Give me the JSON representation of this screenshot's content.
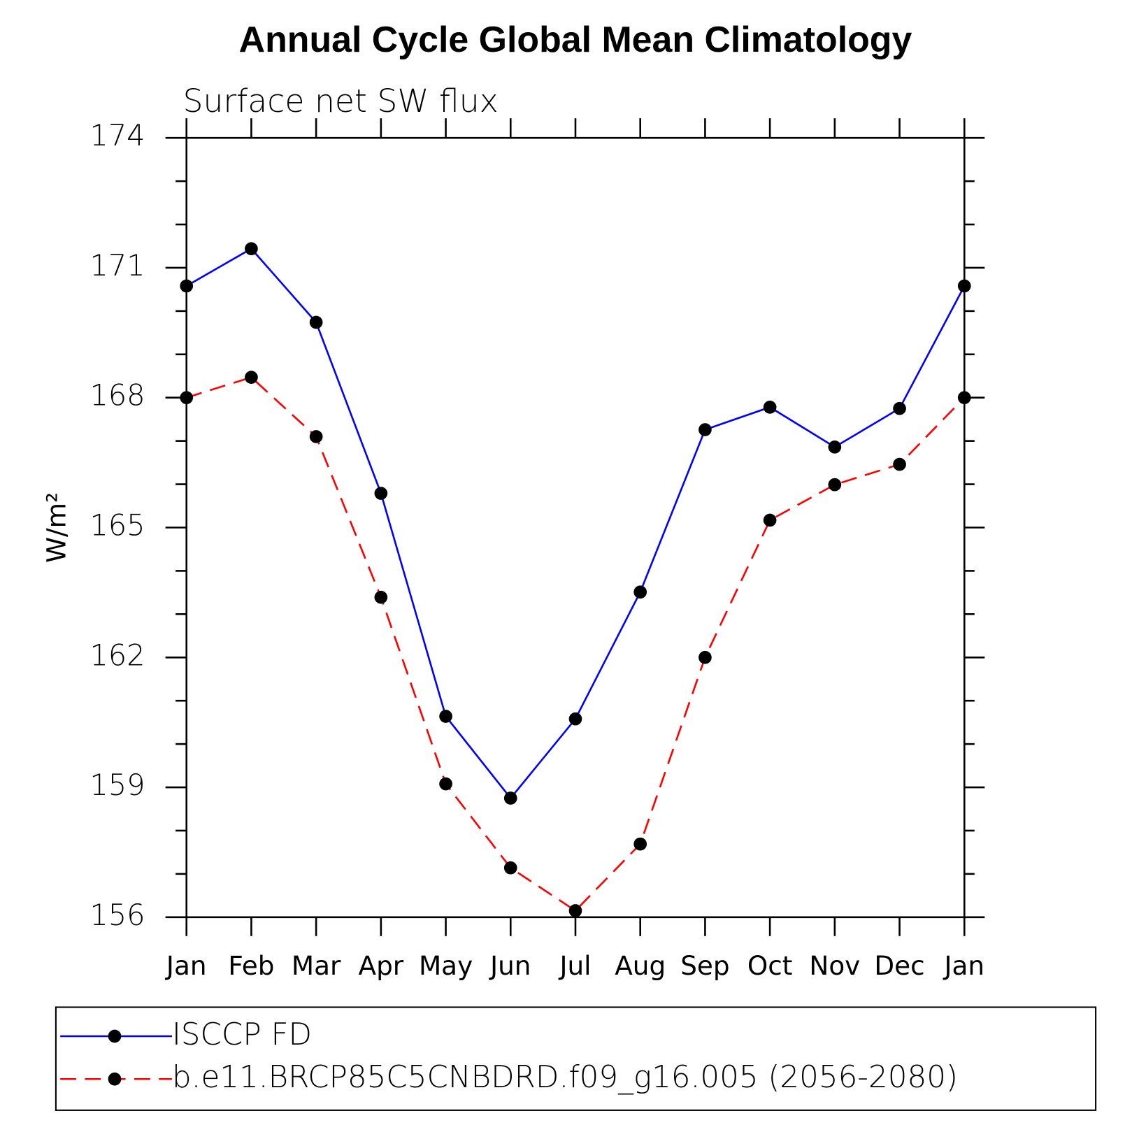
{
  "chart_data": {
    "type": "line",
    "title": "Annual Cycle Global Mean Climatology",
    "subtitle": "Surface net SW flux",
    "y_label": "W/m²",
    "categories": [
      "Jan",
      "Feb",
      "Mar",
      "Apr",
      "May",
      "Jun",
      "Jul",
      "Aug",
      "Sep",
      "Oct",
      "Nov",
      "Dec",
      "Jan"
    ],
    "series": [
      {
        "name": "ISCCP FD",
        "color": "#0000ff",
        "dash": "solid",
        "values": [
          170.58,
          171.44,
          169.74,
          165.79,
          160.64,
          158.75,
          160.58,
          163.51,
          167.26,
          167.78,
          166.86,
          167.75,
          170.58
        ]
      },
      {
        "name": "b.e11.BRCP85C5CNBDRD.f09_g16.005 (2056-2080)",
        "color": "#ff0000",
        "dash": "dashed",
        "values": [
          168.0,
          168.47,
          167.1,
          163.39,
          159.08,
          157.14,
          156.15,
          157.69,
          162.0,
          165.17,
          165.99,
          166.46,
          168.0
        ]
      }
    ],
    "ylim": [
      156,
      174
    ],
    "yticks": [
      156,
      159,
      162,
      165,
      168,
      171,
      174
    ],
    "yminorticks": [
      157,
      158,
      160,
      161,
      163,
      164,
      166,
      167,
      169,
      170,
      172,
      173
    ],
    "grid": false,
    "legend": "bottom"
  }
}
